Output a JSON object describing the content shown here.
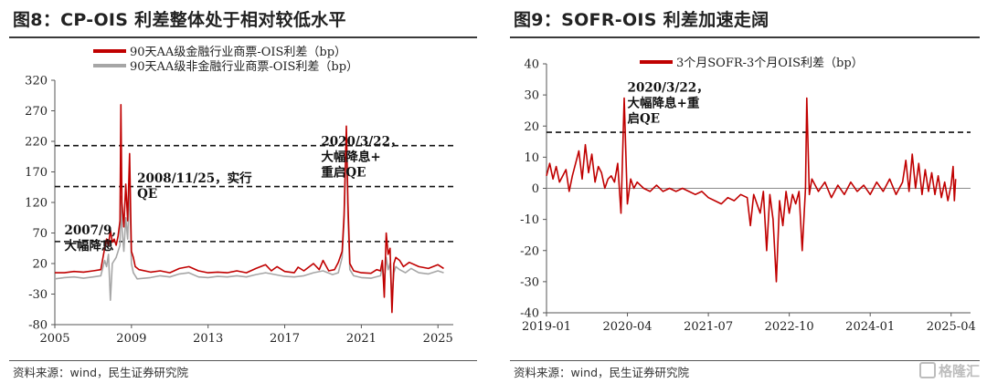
{
  "left": {
    "title": "图8：CP-OIS 利差整体处于相对较低水平",
    "source": "资料来源：wind，民生证券研究院",
    "chart_data": {
      "type": "line",
      "title": "图8：CP-OIS 利差整体处于相对较低水平",
      "xlabel": "",
      "ylabel": "",
      "xlim": [
        2005,
        2025.8
      ],
      "ylim": [
        -80,
        320
      ],
      "yticks": [
        -80,
        -30,
        20,
        70,
        120,
        170,
        220,
        270,
        320
      ],
      "xticks": [
        "2005",
        "2009",
        "2013",
        "2017",
        "2021",
        "2025"
      ],
      "legend_position": "top-center",
      "series": [
        {
          "name": "90天AA级金融行业商票-OIS利差（bp）",
          "color": "#c00000",
          "points": [
            [
              2005.0,
              5
            ],
            [
              2005.5,
              5
            ],
            [
              2006.0,
              7
            ],
            [
              2006.5,
              6
            ],
            [
              2007.0,
              8
            ],
            [
              2007.4,
              10
            ],
            [
              2007.6,
              45
            ],
            [
              2007.7,
              60
            ],
            [
              2007.8,
              50
            ],
            [
              2007.9,
              75
            ],
            [
              2008.0,
              55
            ],
            [
              2008.1,
              60
            ],
            [
              2008.2,
              50
            ],
            [
              2008.3,
              65
            ],
            [
              2008.4,
              90
            ],
            [
              2008.45,
              280
            ],
            [
              2008.5,
              120
            ],
            [
              2008.6,
              80
            ],
            [
              2008.7,
              150
            ],
            [
              2008.8,
              90
            ],
            [
              2008.9,
              200
            ],
            [
              2009.0,
              40
            ],
            [
              2009.1,
              30
            ],
            [
              2009.2,
              15
            ],
            [
              2009.4,
              10
            ],
            [
              2010.0,
              6
            ],
            [
              2010.5,
              8
            ],
            [
              2011.0,
              5
            ],
            [
              2011.5,
              12
            ],
            [
              2012.0,
              15
            ],
            [
              2012.5,
              8
            ],
            [
              2013.0,
              5
            ],
            [
              2013.5,
              6
            ],
            [
              2014.0,
              5
            ],
            [
              2014.5,
              8
            ],
            [
              2015.0,
              5
            ],
            [
              2015.5,
              12
            ],
            [
              2016.0,
              18
            ],
            [
              2016.3,
              8
            ],
            [
              2016.6,
              15
            ],
            [
              2017.0,
              7
            ],
            [
              2017.5,
              5
            ],
            [
              2017.7,
              14
            ],
            [
              2018.0,
              8
            ],
            [
              2018.5,
              20
            ],
            [
              2018.8,
              10
            ],
            [
              2019.0,
              25
            ],
            [
              2019.3,
              8
            ],
            [
              2019.6,
              10
            ],
            [
              2019.8,
              22
            ],
            [
              2020.0,
              40
            ],
            [
              2020.1,
              100
            ],
            [
              2020.22,
              245
            ],
            [
              2020.3,
              120
            ],
            [
              2020.4,
              20
            ],
            [
              2020.6,
              8
            ],
            [
              2021.0,
              5
            ],
            [
              2021.5,
              4
            ],
            [
              2021.8,
              10
            ],
            [
              2022.0,
              8
            ],
            [
              2022.1,
              25
            ],
            [
              2022.2,
              -35
            ],
            [
              2022.3,
              70
            ],
            [
              2022.4,
              35
            ],
            [
              2022.5,
              45
            ],
            [
              2022.6,
              -60
            ],
            [
              2022.7,
              20
            ],
            [
              2022.8,
              30
            ],
            [
              2023.0,
              25
            ],
            [
              2023.2,
              15
            ],
            [
              2023.5,
              22
            ],
            [
              2024.0,
              15
            ],
            [
              2024.5,
              12
            ],
            [
              2025.0,
              18
            ],
            [
              2025.3,
              12
            ]
          ]
        },
        {
          "name": "90天AA级非金融行业商票-OIS利差（bp）",
          "color": "#a6a6a6",
          "points": [
            [
              2005.0,
              -5
            ],
            [
              2005.5,
              -3
            ],
            [
              2006.0,
              -2
            ],
            [
              2006.5,
              -4
            ],
            [
              2007.0,
              -2
            ],
            [
              2007.4,
              0
            ],
            [
              2007.6,
              25
            ],
            [
              2007.7,
              15
            ],
            [
              2007.8,
              35
            ],
            [
              2007.9,
              -40
            ],
            [
              2008.0,
              20
            ],
            [
              2008.2,
              30
            ],
            [
              2008.4,
              50
            ],
            [
              2008.45,
              130
            ],
            [
              2008.5,
              80
            ],
            [
              2008.6,
              40
            ],
            [
              2008.7,
              95
            ],
            [
              2008.8,
              60
            ],
            [
              2008.9,
              150
            ],
            [
              2009.0,
              20
            ],
            [
              2009.1,
              5
            ],
            [
              2009.3,
              -5
            ],
            [
              2010.0,
              -3
            ],
            [
              2010.5,
              0
            ],
            [
              2011.0,
              -2
            ],
            [
              2011.5,
              3
            ],
            [
              2012.0,
              5
            ],
            [
              2012.5,
              -2
            ],
            [
              2013.0,
              -3
            ],
            [
              2013.5,
              -1
            ],
            [
              2014.0,
              -2
            ],
            [
              2014.5,
              0
            ],
            [
              2015.0,
              -2
            ],
            [
              2015.5,
              2
            ],
            [
              2016.0,
              5
            ],
            [
              2016.5,
              2
            ],
            [
              2017.0,
              -1
            ],
            [
              2017.5,
              -2
            ],
            [
              2018.0,
              0
            ],
            [
              2018.5,
              5
            ],
            [
              2019.0,
              8
            ],
            [
              2019.5,
              2
            ],
            [
              2019.8,
              5
            ],
            [
              2020.0,
              30
            ],
            [
              2020.1,
              90
            ],
            [
              2020.22,
              230
            ],
            [
              2020.3,
              100
            ],
            [
              2020.4,
              10
            ],
            [
              2020.6,
              0
            ],
            [
              2021.0,
              -3
            ],
            [
              2021.5,
              -4
            ],
            [
              2022.0,
              0
            ],
            [
              2022.1,
              15
            ],
            [
              2022.2,
              -10
            ],
            [
              2022.3,
              30
            ],
            [
              2022.4,
              10
            ],
            [
              2022.5,
              20
            ],
            [
              2022.6,
              -40
            ],
            [
              2022.7,
              5
            ],
            [
              2022.8,
              15
            ],
            [
              2023.0,
              10
            ],
            [
              2023.3,
              5
            ],
            [
              2023.6,
              12
            ],
            [
              2024.0,
              5
            ],
            [
              2024.5,
              3
            ],
            [
              2025.0,
              8
            ],
            [
              2025.3,
              5
            ]
          ]
        }
      ],
      "reference_lines": [
        213,
        146,
        56
      ],
      "annotations": [
        {
          "lines": [
            "2007/9,",
            "大幅降息"
          ],
          "x": 2005.5,
          "y": 68
        },
        {
          "lines": [
            "2008/11/25，实行",
            "QE"
          ],
          "x": 2009.3,
          "y": 153
        },
        {
          "lines": [
            "2020/3/22，",
            "大幅降息+",
            "重启QE"
          ],
          "x": 2018.9,
          "y": 213
        }
      ]
    }
  },
  "right": {
    "title": "图9：SOFR-OIS 利差加速走阔",
    "source": "资料来源：wind，民生证券研究院",
    "chart_data": {
      "type": "line",
      "title": "图9：SOFR-OIS 利差加速走阔",
      "xlabel": "",
      "ylabel": "",
      "xlim": [
        2019.0,
        2025.55
      ],
      "ylim": [
        -40,
        40
      ],
      "yticks": [
        -40,
        -30,
        -20,
        -10,
        0,
        10,
        20,
        30,
        40
      ],
      "xticks": [
        "2019-01",
        "2020-04",
        "2021-07",
        "2022-10",
        "2024-01",
        "2025-04"
      ],
      "legend_position": "top-center",
      "series": [
        {
          "name": "3个月SOFR-3个月OIS利差（bp）",
          "color": "#c00000",
          "points": [
            [
              2019.0,
              4
            ],
            [
              2019.05,
              8
            ],
            [
              2019.1,
              3
            ],
            [
              2019.15,
              7
            ],
            [
              2019.2,
              2
            ],
            [
              2019.3,
              6
            ],
            [
              2019.35,
              -1
            ],
            [
              2019.4,
              4
            ],
            [
              2019.5,
              12
            ],
            [
              2019.55,
              3
            ],
            [
              2019.6,
              14
            ],
            [
              2019.65,
              5
            ],
            [
              2019.7,
              11
            ],
            [
              2019.75,
              2
            ],
            [
              2019.8,
              7
            ],
            [
              2019.85,
              5
            ],
            [
              2019.9,
              0
            ],
            [
              2019.95,
              3
            ],
            [
              2020.0,
              4
            ],
            [
              2020.05,
              2
            ],
            [
              2020.1,
              8
            ],
            [
              2020.15,
              -8
            ],
            [
              2020.2,
              29
            ],
            [
              2020.25,
              -5
            ],
            [
              2020.3,
              3
            ],
            [
              2020.35,
              0
            ],
            [
              2020.4,
              2
            ],
            [
              2020.5,
              0
            ],
            [
              2020.6,
              -1
            ],
            [
              2020.7,
              1
            ],
            [
              2020.8,
              -1
            ],
            [
              2020.9,
              0
            ],
            [
              2021.0,
              -1
            ],
            [
              2021.1,
              0
            ],
            [
              2021.2,
              -1
            ],
            [
              2021.3,
              -2
            ],
            [
              2021.4,
              -1
            ],
            [
              2021.5,
              -3
            ],
            [
              2021.6,
              -4
            ],
            [
              2021.7,
              -5
            ],
            [
              2021.8,
              -3
            ],
            [
              2021.9,
              -4
            ],
            [
              2022.0,
              -2
            ],
            [
              2022.1,
              -3
            ],
            [
              2022.15,
              -12
            ],
            [
              2022.2,
              -2
            ],
            [
              2022.3,
              -8
            ],
            [
              2022.35,
              -1
            ],
            [
              2022.4,
              -20
            ],
            [
              2022.45,
              -2
            ],
            [
              2022.5,
              -10
            ],
            [
              2022.55,
              -30
            ],
            [
              2022.6,
              -4
            ],
            [
              2022.65,
              -12
            ],
            [
              2022.7,
              -1
            ],
            [
              2022.75,
              -8
            ],
            [
              2022.8,
              -2
            ],
            [
              2022.85,
              -5
            ],
            [
              2022.9,
              -1
            ],
            [
              2022.95,
              -20
            ],
            [
              2023.0,
              0
            ],
            [
              2023.02,
              29
            ],
            [
              2023.06,
              -2
            ],
            [
              2023.1,
              3
            ],
            [
              2023.2,
              -1
            ],
            [
              2023.3,
              2
            ],
            [
              2023.4,
              -3
            ],
            [
              2023.5,
              1
            ],
            [
              2023.6,
              -2
            ],
            [
              2023.7,
              2
            ],
            [
              2023.8,
              -1
            ],
            [
              2023.9,
              1
            ],
            [
              2024.0,
              -2
            ],
            [
              2024.1,
              2
            ],
            [
              2024.2,
              -1
            ],
            [
              2024.3,
              3
            ],
            [
              2024.4,
              -2
            ],
            [
              2024.5,
              2
            ],
            [
              2024.55,
              9
            ],
            [
              2024.6,
              -1
            ],
            [
              2024.65,
              11
            ],
            [
              2024.7,
              0
            ],
            [
              2024.75,
              8
            ],
            [
              2024.8,
              -2
            ],
            [
              2024.85,
              6
            ],
            [
              2024.9,
              -1
            ],
            [
              2024.95,
              5
            ],
            [
              2025.0,
              -2
            ],
            [
              2025.05,
              4
            ],
            [
              2025.1,
              -3
            ],
            [
              2025.15,
              2
            ],
            [
              2025.2,
              -4
            ],
            [
              2025.25,
              1
            ],
            [
              2025.28,
              7
            ],
            [
              2025.3,
              -4
            ],
            [
              2025.32,
              3
            ]
          ]
        }
      ],
      "reference_lines": [
        18
      ],
      "annotations": [
        {
          "lines": [
            "2020/3/22，",
            "大幅降息+重",
            "启QE"
          ],
          "x": 2020.25,
          "y": 31
        }
      ]
    }
  },
  "watermark": "格隆汇"
}
